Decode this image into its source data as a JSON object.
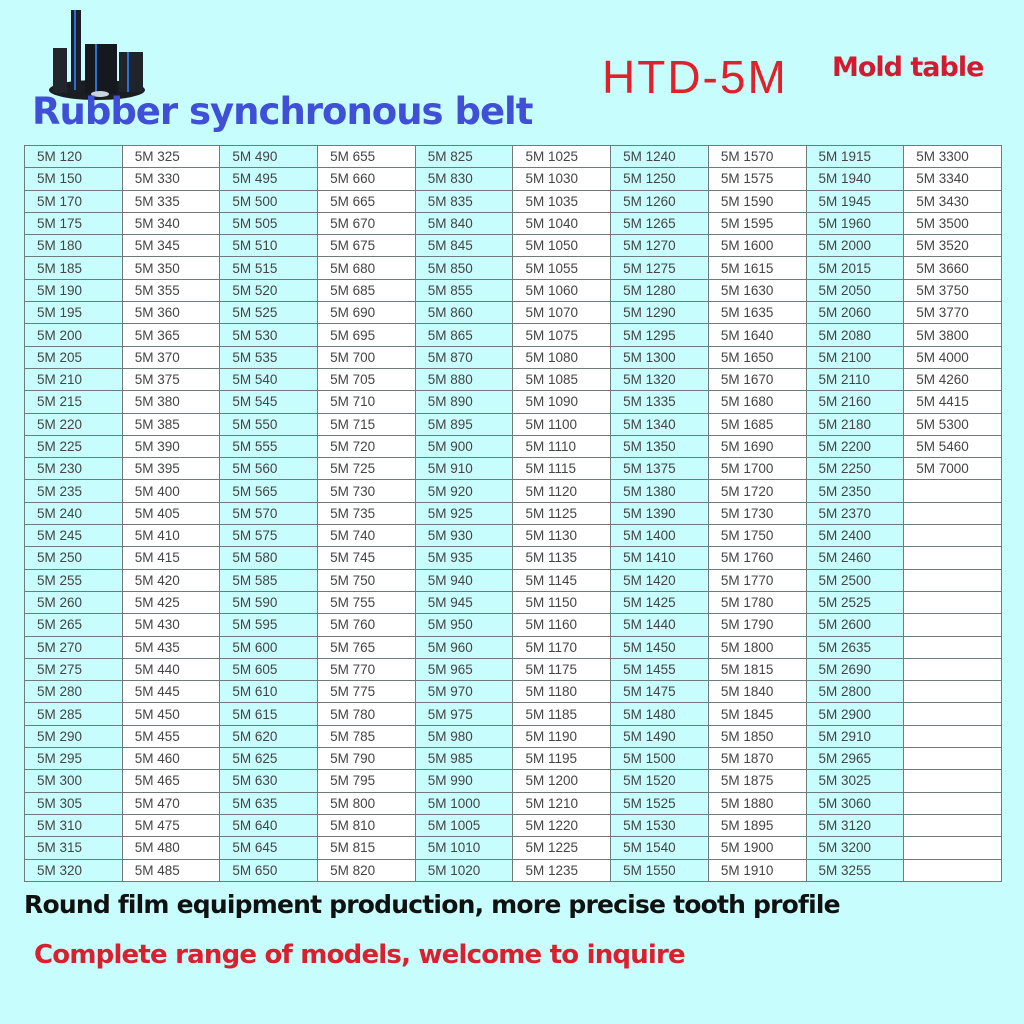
{
  "header": {
    "subtitle": "Rubber synchronous belt",
    "model": "HTD-5M",
    "table_label": "Mold table"
  },
  "colors": {
    "background": "#c8fdfd",
    "blue_title": "#3f4fd6",
    "red_title": "#e0202a",
    "footer_red": "#d8202e"
  },
  "table": {
    "columns": [
      [
        "5M 120",
        "5M 150",
        "5M 170",
        "5M 175",
        "5M 180",
        "5M 185",
        "5M 190",
        "5M 195",
        "5M 200",
        "5M 205",
        "5M 210",
        "5M 215",
        "5M 220",
        "5M 225",
        "5M 230",
        "5M 235",
        "5M 240",
        "5M 245",
        "5M 250",
        "5M 255",
        "5M 260",
        "5M 265",
        "5M 270",
        "5M 275",
        "5M 280",
        "5M 285",
        "5M 290",
        "5M 295",
        "5M 300",
        "5M 305",
        "5M 310",
        "5M 315",
        "5M 320"
      ],
      [
        "5M 325",
        "5M 330",
        "5M 335",
        "5M 340",
        "5M 345",
        "5M 350",
        "5M 355",
        "5M 360",
        "5M 365",
        "5M 370",
        "5M 375",
        "5M 380",
        "5M 385",
        "5M 390",
        "5M 395",
        "5M 400",
        "5M 405",
        "5M 410",
        "5M 415",
        "5M 420",
        "5M 425",
        "5M 430",
        "5M 435",
        "5M 440",
        "5M 445",
        "5M 450",
        "5M 455",
        "5M 460",
        "5M 465",
        "5M 470",
        "5M 475",
        "5M 480",
        "5M 485"
      ],
      [
        "5M 490",
        "5M 495",
        "5M 500",
        "5M 505",
        "5M 510",
        "5M 515",
        "5M 520",
        "5M 525",
        "5M 530",
        "5M 535",
        "5M 540",
        "5M 545",
        "5M 550",
        "5M 555",
        "5M 560",
        "5M 565",
        "5M 570",
        "5M 575",
        "5M 580",
        "5M 585",
        "5M 590",
        "5M 595",
        "5M 600",
        "5M 605",
        "5M 610",
        "5M 615",
        "5M 620",
        "5M 625",
        "5M 630",
        "5M 635",
        "5M 640",
        "5M 645",
        "5M 650"
      ],
      [
        "5M 655",
        "5M 660",
        "5M 665",
        "5M 670",
        "5M 675",
        "5M 680",
        "5M 685",
        "5M 690",
        "5M 695",
        "5M 700",
        "5M 705",
        "5M 710",
        "5M 715",
        "5M 720",
        "5M 725",
        "5M 730",
        "5M 735",
        "5M 740",
        "5M 745",
        "5M 750",
        "5M 755",
        "5M 760",
        "5M 765",
        "5M 770",
        "5M 775",
        "5M 780",
        "5M 785",
        "5M 790",
        "5M 795",
        "5M 800",
        "5M 810",
        "5M 815",
        "5M 820"
      ],
      [
        "5M 825",
        "5M 830",
        "5M 835",
        "5M 840",
        "5M 845",
        "5M 850",
        "5M 855",
        "5M 860",
        "5M 865",
        "5M 870",
        "5M 880",
        "5M 890",
        "5M 895",
        "5M 900",
        "5M 910",
        "5M 920",
        "5M 925",
        "5M 930",
        "5M 935",
        "5M 940",
        "5M 945",
        "5M 950",
        "5M 960",
        "5M 965",
        "5M 970",
        "5M 975",
        "5M 980",
        "5M 985",
        "5M 990",
        "5M 1000",
        "5M 1005",
        "5M 1010",
        "5M 1020"
      ],
      [
        "5M 1025",
        "5M 1030",
        "5M 1035",
        "5M 1040",
        "5M 1050",
        "5M 1055",
        "5M 1060",
        "5M 1070",
        "5M 1075",
        "5M 1080",
        "5M 1085",
        "5M 1090",
        "5M 1100",
        "5M 1110",
        "5M 1115",
        "5M 1120",
        "5M 1125",
        "5M 1130",
        "5M 1135",
        "5M 1145",
        "5M 1150",
        "5M 1160",
        "5M 1170",
        "5M 1175",
        "5M 1180",
        "5M 1185",
        "5M 1190",
        "5M 1195",
        "5M 1200",
        "5M 1210",
        "5M 1220",
        "5M 1225",
        "5M 1235"
      ],
      [
        "5M 1240",
        "5M 1250",
        "5M 1260",
        "5M 1265",
        "5M 1270",
        "5M 1275",
        "5M 1280",
        "5M 1290",
        "5M 1295",
        "5M 1300",
        "5M 1320",
        "5M 1335",
        "5M 1340",
        "5M 1350",
        "5M 1375",
        "5M 1380",
        "5M 1390",
        "5M 1400",
        "5M 1410",
        "5M 1420",
        "5M 1425",
        "5M 1440",
        "5M 1450",
        "5M 1455",
        "5M 1475",
        "5M 1480",
        "5M 1490",
        "5M 1500",
        "5M 1520",
        "5M 1525",
        "5M 1530",
        "5M 1540",
        "5M 1550"
      ],
      [
        "5M 1570",
        "5M 1575",
        "5M 1590",
        "5M 1595",
        "5M 1600",
        "5M 1615",
        "5M 1630",
        "5M 1635",
        "5M 1640",
        "5M 1650",
        "5M 1670",
        "5M 1680",
        "5M 1685",
        "5M 1690",
        "5M 1700",
        "5M 1720",
        "5M 1730",
        "5M 1750",
        "5M 1760",
        "5M 1770",
        "5M 1780",
        "5M 1790",
        "5M 1800",
        "5M 1815",
        "5M 1840",
        "5M 1845",
        "5M 1850",
        "5M 1870",
        "5M 1875",
        "5M 1880",
        "5M 1895",
        "5M 1900",
        "5M 1910"
      ],
      [
        "5M 1915",
        "5M 1940",
        "5M 1945",
        "5M 1960",
        "5M 2000",
        "5M 2015",
        "5M 2050",
        "5M 2060",
        "5M 2080",
        "5M 2100",
        "5M 2110",
        "5M 2160",
        "5M 2180",
        "5M 2200",
        "5M 2250",
        "5M 2350",
        "5M 2370",
        "5M 2400",
        "5M 2460",
        "5M 2500",
        "5M 2525",
        "5M 2600",
        "5M 2635",
        "5M 2690",
        "5M 2800",
        "5M 2900",
        "5M 2910",
        "5M 2965",
        "5M 3025",
        "5M 3060",
        "5M 3120",
        "5M 3200",
        "5M 3255"
      ],
      [
        "5M 3300",
        "5M 3340",
        "5M 3430",
        "5M 3500",
        "5M 3520",
        "5M 3660",
        "5M 3750",
        "5M 3770",
        "5M 3800",
        "5M 4000",
        "5M 4260",
        "5M 4415",
        "5M 5300",
        "5M 5460",
        "5M 7000"
      ]
    ]
  },
  "footer": {
    "line1": "Round film equipment production, more precise tooth profile",
    "line2": "Complete range of models, welcome to inquire"
  }
}
